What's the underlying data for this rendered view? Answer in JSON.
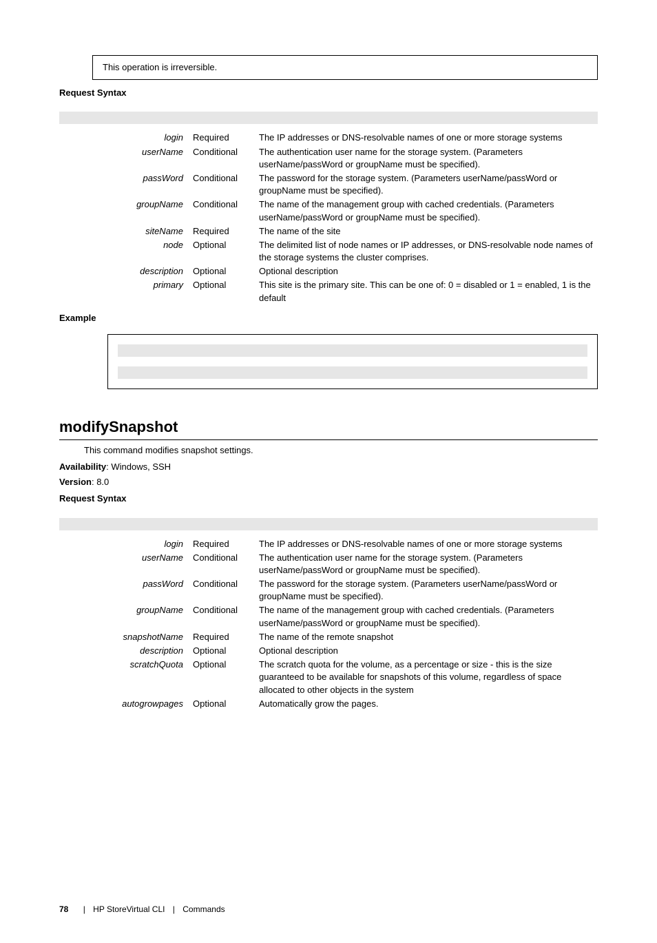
{
  "note": "This operation is irreversible.",
  "label_request_syntax": "Request Syntax",
  "label_example": "Example",
  "params1": [
    {
      "name": "login",
      "req": "Required",
      "desc": "The IP addresses or DNS-resolvable names of one or more storage systems"
    },
    {
      "name": "userName",
      "req": "Conditional",
      "desc": "The authentication user name for the storage system. (Parameters userName/passWord or groupName must be specified)."
    },
    {
      "name": "passWord",
      "req": "Conditional",
      "desc": "The password for the storage system. (Parameters userName/passWord or groupName must be specified)."
    },
    {
      "name": "groupName",
      "req": "Conditional",
      "desc": "The name of the management group with cached credentials. (Parameters userName/passWord or groupName must be specified)."
    },
    {
      "name": "siteName",
      "req": "Required",
      "desc": "The name of the site"
    },
    {
      "name": "node",
      "req": "Optional",
      "desc": "The delimited list of node names or IP addresses, or DNS-resolvable node names of the storage systems the cluster comprises."
    },
    {
      "name": "description",
      "req": "Optional",
      "desc": "Optional description"
    },
    {
      "name": "primary",
      "req": "Optional",
      "desc": "This site is the primary site. This can be one of: 0 = disabled or 1 = enabled, 1 is the default"
    }
  ],
  "command": {
    "name": "modifySnapshot",
    "intro": "This command modifies snapshot settings.",
    "availability_label": "Availability",
    "availability": ": Windows, SSH",
    "version_label": "Version",
    "version": ": 8.0"
  },
  "params2": [
    {
      "name": "login",
      "req": "Required",
      "desc": "The IP addresses or DNS-resolvable names of one or more storage systems"
    },
    {
      "name": "userName",
      "req": "Conditional",
      "desc": "The authentication user name for the storage system. (Parameters userName/passWord or groupName must be specified)."
    },
    {
      "name": "passWord",
      "req": "Conditional",
      "desc": "The password for the storage system. (Parameters userName/passWord or groupName must be specified)."
    },
    {
      "name": "groupName",
      "req": "Conditional",
      "desc": "The name of the management group with cached credentials. (Parameters userName/passWord or groupName must be specified)."
    },
    {
      "name": "snapshotName",
      "req": "Required",
      "desc": "The name of the remote snapshot"
    },
    {
      "name": "description",
      "req": "Optional",
      "desc": "Optional description"
    },
    {
      "name": "scratchQuota",
      "req": "Optional",
      "desc": "The scratch quota for the volume, as a percentage or size - this is the size guaranteed to be available for snapshots of this volume, regardless of space allocated to other objects in the system"
    },
    {
      "name": "autogrowpages",
      "req": "Optional",
      "desc": "Automatically grow the pages."
    }
  ],
  "footer": {
    "page": "78",
    "product": "HP StoreVirtual CLI",
    "section": "Commands"
  }
}
